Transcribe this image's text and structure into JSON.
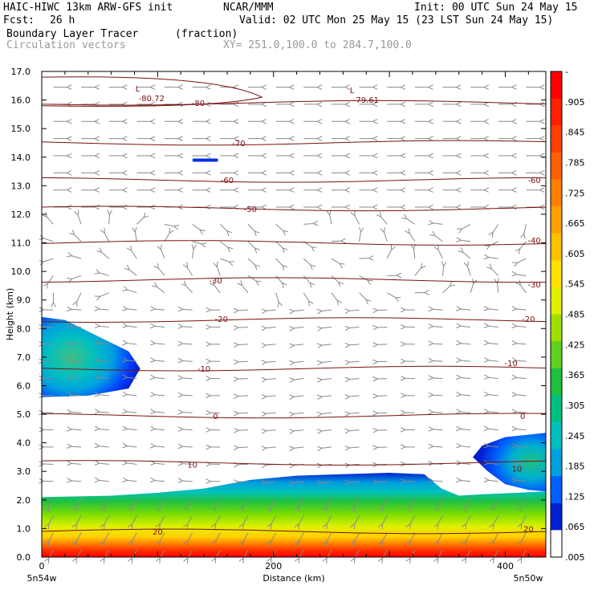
{
  "header": {
    "title_left": "HAIC-HIWC 13km ARW-GFS init",
    "org": "NCAR/MMM",
    "init": "Init: 00 UTC Sun 24 May 15",
    "fcst_label": "Fcst:",
    "fcst_value": "26 h",
    "valid": "Valid: 02 UTC Mon 25 May 15 (23 LST Sun 24 May 15)",
    "field1": "Boundary Layer Tracer",
    "field1_units": "(fraction)",
    "field2": "Circulation vectors",
    "xy": "XY= 251.0,100.0 to 284.7,100.0"
  },
  "chart_data": {
    "type": "heatmap",
    "xlabel": "Distance (km)",
    "ylabel": "Height (km)",
    "xlim": [
      0,
      435
    ],
    "ylim": [
      0,
      17
    ],
    "x_ticks": [
      0,
      200,
      400
    ],
    "x_ticks_labels": [
      "0",
      "200",
      "400"
    ],
    "y_ticks": [
      0,
      1,
      2,
      3,
      4,
      5,
      6,
      7,
      8,
      9,
      10,
      11,
      12,
      13,
      14,
      15,
      16,
      17
    ],
    "y_ticks_labels": [
      "0.0",
      "1.0",
      "2.0",
      "3.0",
      "4.0",
      "5.0",
      "6.0",
      "7.0",
      "8.0",
      "9.0",
      "10.0",
      "11.0",
      "12.0",
      "13.0",
      "14.0",
      "15.0",
      "16.0",
      "17.0"
    ],
    "endpoint_labels": {
      "left": "5n54w",
      "right": "5n50w"
    },
    "colorbar": {
      "labels": [
        "-",
        ".905",
        ".845",
        ".785",
        ".725",
        ".665",
        ".605",
        ".545",
        ".485",
        ".425",
        ".365",
        ".305",
        ".245",
        ".185",
        ".125",
        ".065",
        ".005"
      ],
      "colors": [
        "#ff0000",
        "#ff2000",
        "#ff4000",
        "#ff6000",
        "#ff8000",
        "#ffa000",
        "#ffc000",
        "#ffe000",
        "#e0f000",
        "#a0e000",
        "#60d020",
        "#20c040",
        "#00c080",
        "#00c0c0",
        "#00a0e0",
        "#0060ff",
        "#0020d0",
        "#ffffff"
      ]
    },
    "tracer_bands": [
      {
        "name": "boundary_layer",
        "top_km": 2.2,
        "values": "0.1 to 0.9+ decreasing with height"
      },
      {
        "name": "upper_left_plume",
        "x_km": [
          0,
          85
        ],
        "y_km": [
          5.6,
          8.4
        ]
      },
      {
        "name": "right_plume",
        "x_km": [
          370,
          435
        ],
        "y_km": [
          2.3,
          4.3
        ]
      }
    ],
    "temperature_contours": [
      {
        "value": 20,
        "label": "20",
        "height_km": 0.9
      },
      {
        "value": 10,
        "label": "10",
        "height_km": 3.3
      },
      {
        "value": 0,
        "label": "0",
        "height_km": 4.95
      },
      {
        "value": -10,
        "label": "-10",
        "height_km": 6.6
      },
      {
        "value": -20,
        "label": "-20",
        "height_km": 8.3
      },
      {
        "value": -30,
        "label": "-30",
        "height_km": 9.7
      },
      {
        "value": -40,
        "label": "-40",
        "height_km": 11.0
      },
      {
        "value": -50,
        "label": "-50",
        "height_km": 12.2
      },
      {
        "value": -60,
        "label": "-60",
        "height_km": 13.2
      },
      {
        "value": -70,
        "label": "-70",
        "height_km": 14.5
      },
      {
        "value": -80,
        "label": "-80",
        "height_km": 15.9
      }
    ],
    "contour_labels": [
      {
        "text": "20",
        "x": 100,
        "y": 0.9
      },
      {
        "text": "20",
        "x": 420,
        "y": 1.0
      },
      {
        "text": "10",
        "x": 130,
        "y": 3.25
      },
      {
        "text": "10",
        "x": 410,
        "y": 3.1
      },
      {
        "text": "0",
        "x": 150,
        "y": 4.95
      },
      {
        "text": "0",
        "x": 415,
        "y": 4.95
      },
      {
        "text": "-10",
        "x": 140,
        "y": 6.6
      },
      {
        "text": "-10",
        "x": 405,
        "y": 6.8
      },
      {
        "text": "-20",
        "x": 155,
        "y": 8.35
      },
      {
        "text": "-20",
        "x": 420,
        "y": 8.35
      },
      {
        "text": "-30",
        "x": 150,
        "y": 9.7
      },
      {
        "text": "-30",
        "x": 425,
        "y": 9.55
      },
      {
        "text": "-40",
        "x": 425,
        "y": 11.1
      },
      {
        "text": "-50",
        "x": 180,
        "y": 12.2
      },
      {
        "text": "-60",
        "x": 160,
        "y": 13.2
      },
      {
        "text": "-60",
        "x": 425,
        "y": 13.2
      },
      {
        "text": "-70",
        "x": 170,
        "y": 14.5
      },
      {
        "text": "-80",
        "x": 135,
        "y": 15.9
      }
    ],
    "min_labels": [
      {
        "mark": "L",
        "value": "-80.72",
        "x": 85,
        "y": 16.1
      },
      {
        "mark": "L",
        "value": "-79.61",
        "x": 270,
        "y": 16.05
      }
    ]
  }
}
